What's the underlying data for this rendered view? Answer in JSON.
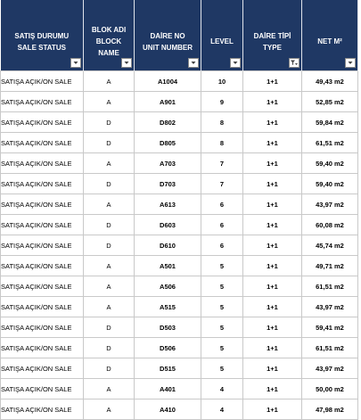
{
  "table": {
    "headers": [
      [
        "SATIŞ DURUMU",
        "SALE STATUS"
      ],
      [
        "BLOK ADI",
        "BLOCK",
        "NAME"
      ],
      [
        "DAİRE NO",
        "UNIT NUMBER"
      ],
      [
        "LEVEL"
      ],
      [
        "DAİRE TİPİ",
        "TYPE"
      ],
      [
        "NET M²"
      ]
    ],
    "rows": [
      [
        "SATIŞA AÇIK/ON SALE",
        "A",
        "A1004",
        "10",
        "1+1",
        "49,43 m2"
      ],
      [
        "SATIŞA AÇIK/ON SALE",
        "A",
        "A901",
        "9",
        "1+1",
        "52,85 m2"
      ],
      [
        "SATIŞA AÇIK/ON SALE",
        "D",
        "D802",
        "8",
        "1+1",
        "59,84 m2"
      ],
      [
        "SATIŞA AÇIK/ON SALE",
        "D",
        "D805",
        "8",
        "1+1",
        "61,51 m2"
      ],
      [
        "SATIŞA AÇIK/ON SALE",
        "A",
        "A703",
        "7",
        "1+1",
        "59,40 m2"
      ],
      [
        "SATIŞA AÇIK/ON SALE",
        "D",
        "D703",
        "7",
        "1+1",
        "59,40 m2"
      ],
      [
        "SATIŞA AÇIK/ON SALE",
        "A",
        "A613",
        "6",
        "1+1",
        "43,97 m2"
      ],
      [
        "SATIŞA AÇIK/ON SALE",
        "D",
        "D603",
        "6",
        "1+1",
        "60,08 m2"
      ],
      [
        "SATIŞA AÇIK/ON SALE",
        "D",
        "D610",
        "6",
        "1+1",
        "45,74 m2"
      ],
      [
        "SATIŞA AÇIK/ON SALE",
        "A",
        "A501",
        "5",
        "1+1",
        "49,71 m2"
      ],
      [
        "SATIŞA AÇIK/ON SALE",
        "A",
        "A506",
        "5",
        "1+1",
        "61,51 m2"
      ],
      [
        "SATIŞA AÇIK/ON SALE",
        "A",
        "A515",
        "5",
        "1+1",
        "43,97 m2"
      ],
      [
        "SATIŞA AÇIK/ON SALE",
        "D",
        "D503",
        "5",
        "1+1",
        "59,41 m2"
      ],
      [
        "SATIŞA AÇIK/ON SALE",
        "D",
        "D506",
        "5",
        "1+1",
        "61,51 m2"
      ],
      [
        "SATIŞA AÇIK/ON SALE",
        "D",
        "D515",
        "5",
        "1+1",
        "43,97 m2"
      ],
      [
        "SATIŞA AÇIK/ON SALE",
        "A",
        "A401",
        "4",
        "1+1",
        "50,00 m2"
      ],
      [
        "SATIŞA AÇIK/ON SALE",
        "A",
        "A410",
        "4",
        "1+1",
        "47,98 m2"
      ]
    ]
  }
}
